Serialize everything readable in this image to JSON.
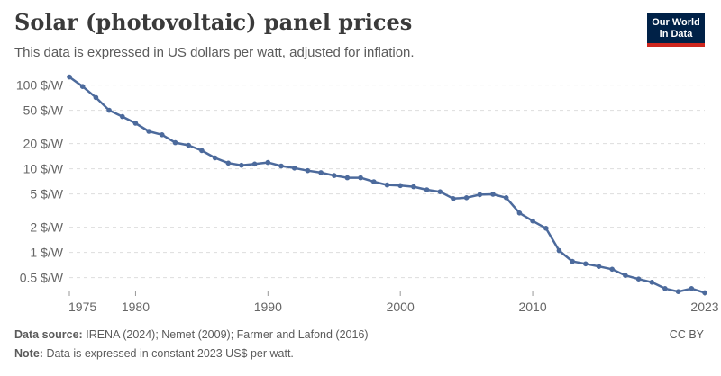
{
  "header": {
    "title": "Solar (photovoltaic) panel prices",
    "subtitle": "This data is expressed in US dollars per watt, adjusted for inflation.",
    "logo_line1": "Our World",
    "logo_line2": "in Data",
    "logo_bg": "#002147",
    "logo_accent": "#ce261e"
  },
  "footer": {
    "source_label": "Data source:",
    "source_text": "IRENA (2024); Nemet (2009); Farmer and Lafond (2016)",
    "note_label": "Note:",
    "note_text": "Data is expressed in constant 2023 US$ per watt.",
    "license": "CC BY"
  },
  "chart_data": {
    "type": "line",
    "title": "Solar (photovoltaic) panel prices",
    "xlabel": "",
    "ylabel": "",
    "y_scale": "log",
    "xlim": [
      1975,
      2023
    ],
    "ylim": [
      0.35,
      130
    ],
    "y_ticks": [
      {
        "value": 0.5,
        "label": "0.5 $/W"
      },
      {
        "value": 1,
        "label": "1 $/W"
      },
      {
        "value": 2,
        "label": "2 $/W"
      },
      {
        "value": 5,
        "label": "5 $/W"
      },
      {
        "value": 10,
        "label": "10 $/W"
      },
      {
        "value": 20,
        "label": "20 $/W"
      },
      {
        "value": 50,
        "label": "50 $/W"
      },
      {
        "value": 100,
        "label": "100 $/W"
      }
    ],
    "x_ticks": [
      {
        "value": 1975,
        "label": "1975"
      },
      {
        "value": 1980,
        "label": "1980"
      },
      {
        "value": 1990,
        "label": "1990"
      },
      {
        "value": 2000,
        "label": "2000"
      },
      {
        "value": 2010,
        "label": "2010"
      },
      {
        "value": 2023,
        "label": "2023"
      }
    ],
    "grid": "horizontal dashed",
    "color": "#4c6a9c",
    "series": [
      {
        "x": [
          1975,
          1976,
          1977,
          1978,
          1979,
          1980,
          1981,
          1982,
          1983,
          1984,
          1985,
          1986,
          1987,
          1988,
          1989,
          1990,
          1991,
          1992,
          1993,
          1994,
          1995,
          1996,
          1997,
          1998,
          1999,
          2000,
          2001,
          2002,
          2003,
          2004,
          2005,
          2006,
          2007,
          2008,
          2009,
          2010,
          2011,
          2012,
          2013,
          2014,
          2015,
          2016,
          2017,
          2018,
          2019,
          2020,
          2021,
          2022,
          2023
        ],
        "y": [
          125,
          96,
          71,
          50,
          42,
          35,
          28,
          25.5,
          20.5,
          19.1,
          16.5,
          13.5,
          11.7,
          11,
          11.4,
          11.9,
          10.8,
          10.2,
          9.5,
          9.0,
          8.3,
          7.8,
          7.8,
          7.0,
          6.4,
          6.3,
          6.1,
          5.6,
          5.3,
          4.4,
          4.5,
          4.9,
          4.95,
          4.5,
          2.96,
          2.37,
          1.94,
          1.05,
          0.78,
          0.73,
          0.68,
          0.63,
          0.53,
          0.48,
          0.44,
          0.37,
          0.34,
          0.37,
          0.33
        ]
      }
    ]
  }
}
